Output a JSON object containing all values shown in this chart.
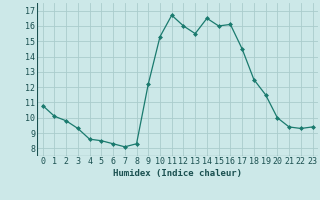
{
  "x": [
    0,
    1,
    2,
    3,
    4,
    5,
    6,
    7,
    8,
    9,
    10,
    11,
    12,
    13,
    14,
    15,
    16,
    17,
    18,
    19,
    20,
    21,
    22,
    23
  ],
  "y": [
    10.8,
    10.1,
    9.8,
    9.3,
    8.6,
    8.5,
    8.3,
    8.1,
    8.3,
    12.2,
    15.3,
    16.7,
    16.0,
    15.5,
    16.5,
    16.0,
    16.1,
    14.5,
    12.5,
    11.5,
    10.0,
    9.4,
    9.3,
    9.4
  ],
  "xlabel": "Humidex (Indice chaleur)",
  "xlim": [
    -0.5,
    23.5
  ],
  "ylim": [
    7.5,
    17.5
  ],
  "yticks": [
    8,
    9,
    10,
    11,
    12,
    13,
    14,
    15,
    16,
    17
  ],
  "xticks": [
    0,
    1,
    2,
    3,
    4,
    5,
    6,
    7,
    8,
    9,
    10,
    11,
    12,
    13,
    14,
    15,
    16,
    17,
    18,
    19,
    20,
    21,
    22,
    23
  ],
  "line_color": "#1a7a6e",
  "marker": "D",
  "marker_size": 2.0,
  "bg_color": "#cce8e8",
  "grid_color": "#aacccc",
  "label_fontsize": 6.5,
  "tick_fontsize": 6.0
}
